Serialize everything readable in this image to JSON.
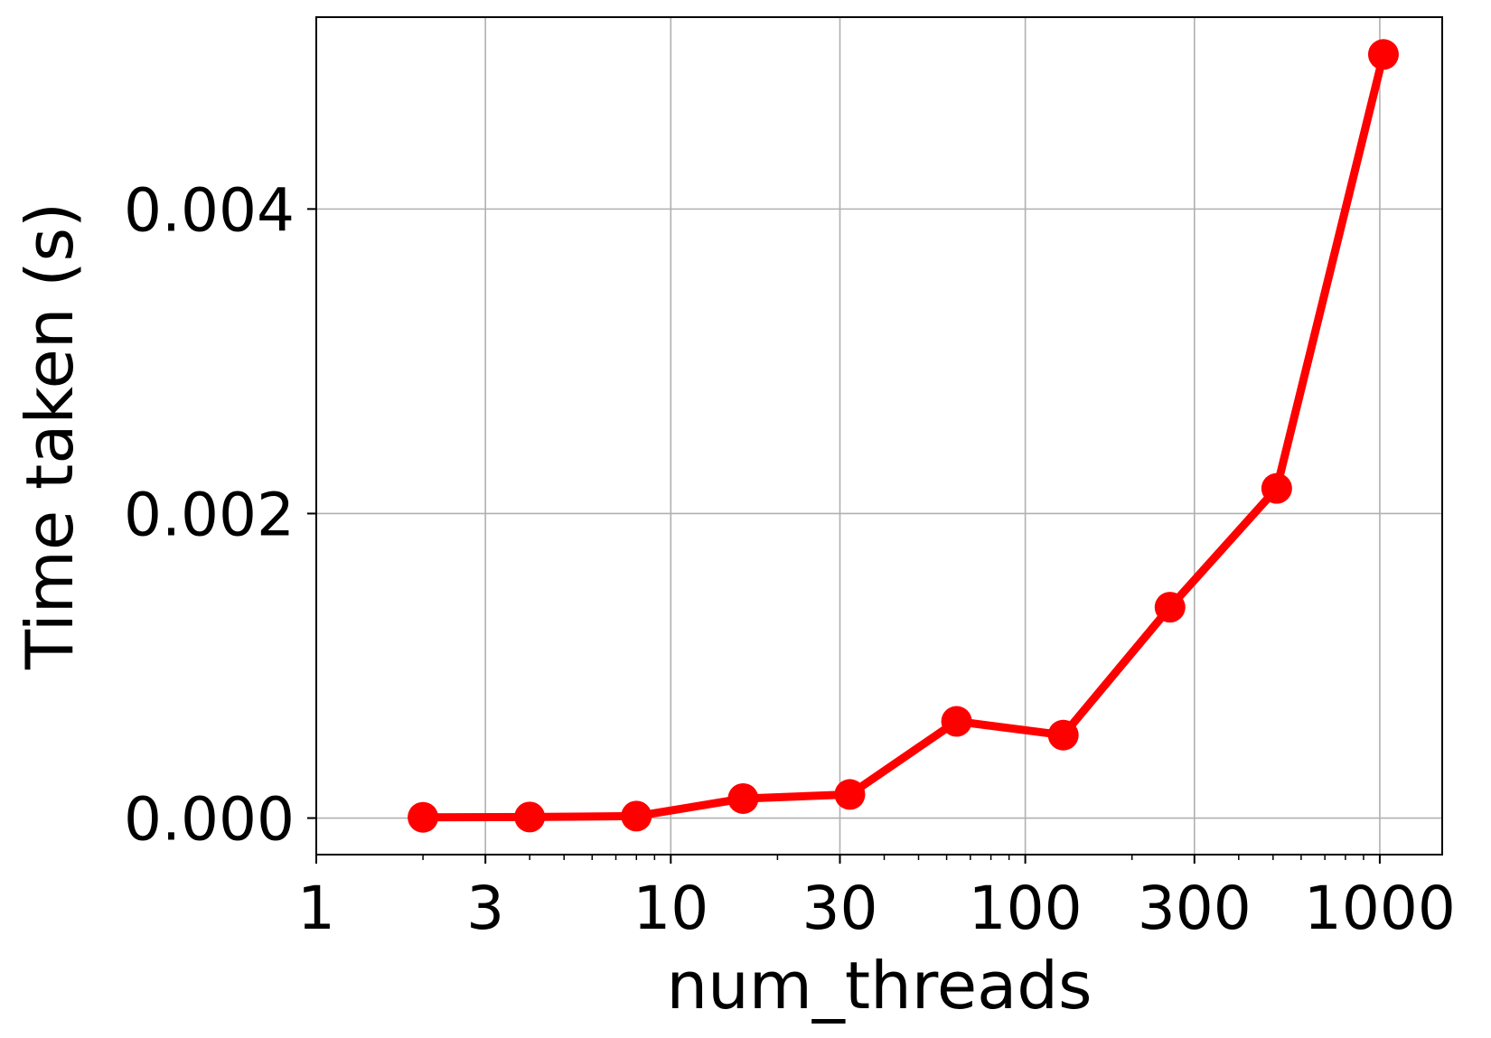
{
  "chart_data": {
    "type": "line",
    "title": "",
    "xlabel": "num_threads",
    "ylabel": "Time taken (s)",
    "x_scale": "log",
    "xlim": [
      1,
      1500
    ],
    "ylim": [
      -0.00024,
      0.00526
    ],
    "x_ticks": [
      {
        "value": 1,
        "label": "1"
      },
      {
        "value": 3,
        "label": "3"
      },
      {
        "value": 10,
        "label": "10"
      },
      {
        "value": 30,
        "label": "30"
      },
      {
        "value": 100,
        "label": "100"
      },
      {
        "value": 300,
        "label": "300"
      },
      {
        "value": 1000,
        "label": "1000"
      }
    ],
    "y_ticks": [
      {
        "value": 0.0,
        "label": "0.000"
      },
      {
        "value": 0.002,
        "label": "0.002"
      },
      {
        "value": 0.004,
        "label": "0.004"
      }
    ],
    "grid": true,
    "series": [
      {
        "color": "#ff0000",
        "x": [
          2,
          4,
          8,
          16,
          32,
          64,
          128,
          256,
          512,
          1024
        ],
        "y": [
          5e-06,
          7e-06,
          1.3e-05,
          0.000128,
          0.000155,
          0.000635,
          0.000545,
          0.001385,
          0.002165,
          0.005015
        ]
      }
    ]
  }
}
